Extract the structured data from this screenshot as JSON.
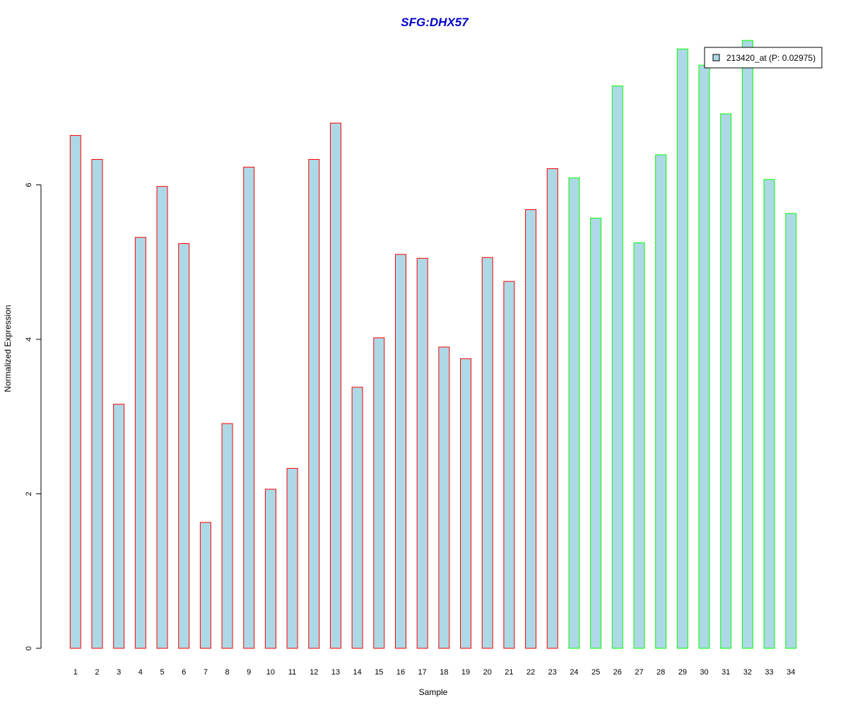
{
  "chart_data": {
    "type": "bar",
    "title": "SFG:DHX57",
    "xlabel": "Sample",
    "ylabel": "Normalized Expression",
    "categories": [
      "1",
      "2",
      "3",
      "4",
      "5",
      "6",
      "7",
      "8",
      "9",
      "10",
      "11",
      "12",
      "13",
      "14",
      "15",
      "16",
      "17",
      "18",
      "19",
      "20",
      "21",
      "22",
      "23",
      "24",
      "25",
      "26",
      "27",
      "28",
      "29",
      "30",
      "31",
      "32",
      "33",
      "34"
    ],
    "series": [
      {
        "name": "213420_at (P: 0.02975)",
        "values": [
          6.64,
          6.33,
          3.16,
          5.32,
          5.98,
          5.24,
          1.63,
          2.91,
          6.23,
          2.06,
          2.33,
          6.33,
          6.8,
          3.38,
          4.02,
          5.1,
          5.05,
          3.9,
          3.75,
          5.06,
          4.75,
          5.68,
          6.21,
          6.09,
          5.57,
          7.28,
          5.25,
          6.39,
          7.76,
          7.55,
          6.92,
          7.87,
          6.07,
          5.63
        ]
      }
    ],
    "group_of_bar": [
      "red",
      "red",
      "red",
      "red",
      "red",
      "red",
      "red",
      "red",
      "red",
      "red",
      "red",
      "red",
      "red",
      "red",
      "red",
      "red",
      "red",
      "red",
      "red",
      "red",
      "red",
      "red",
      "red",
      "green",
      "green",
      "green",
      "green",
      "green",
      "green",
      "green",
      "green",
      "green",
      "green",
      "green"
    ],
    "yticks": [
      "0",
      "2",
      "4",
      "6"
    ],
    "ylim": [
      0,
      7.87
    ],
    "grid": false,
    "legend_position": "top-right",
    "colors": {
      "bar_fill": "#add8e6",
      "red": "#ff0000",
      "green": "#00ff00",
      "title": "#0000cc",
      "axis": "#000000"
    }
  }
}
